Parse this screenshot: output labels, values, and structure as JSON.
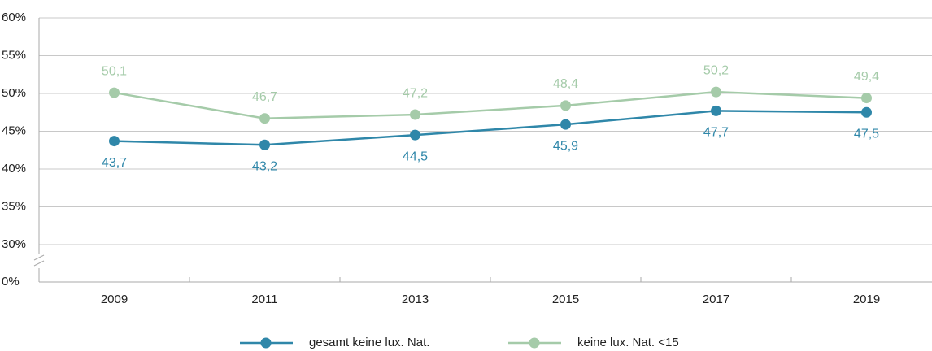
{
  "chart_data": {
    "type": "line",
    "categories": [
      "2009",
      "2011",
      "2013",
      "2015",
      "2017",
      "2019"
    ],
    "series": [
      {
        "name": "gesamt keine lux. Nat.",
        "color": "#2f87a9",
        "values": [
          43.7,
          43.2,
          44.5,
          45.9,
          47.7,
          47.5
        ],
        "value_labels": [
          "43,7",
          "43,2",
          "44,5",
          "45,9",
          "47,7",
          "47,5"
        ],
        "label_position": "below"
      },
      {
        "name": "keine lux. Nat. <15",
        "color": "#a5cba9",
        "values": [
          50.1,
          46.7,
          47.2,
          48.4,
          50.2,
          49.4
        ],
        "value_labels": [
          "50,1",
          "46,7",
          "47,2",
          "48,4",
          "50,2",
          "49,4"
        ],
        "label_position": "above"
      }
    ],
    "ylim": [
      0,
      60
    ],
    "axis_break": [
      0,
      30
    ],
    "yticks": [
      {
        "value": 0,
        "label": "0%"
      },
      {
        "value": 30,
        "label": "30%"
      },
      {
        "value": 35,
        "label": "35%"
      },
      {
        "value": 40,
        "label": "40%"
      },
      {
        "value": 45,
        "label": "45%"
      },
      {
        "value": 50,
        "label": "50%"
      },
      {
        "value": 55,
        "label": "55%"
      },
      {
        "value": 60,
        "label": "60%"
      }
    ],
    "grid": true,
    "legend": "bottom"
  }
}
